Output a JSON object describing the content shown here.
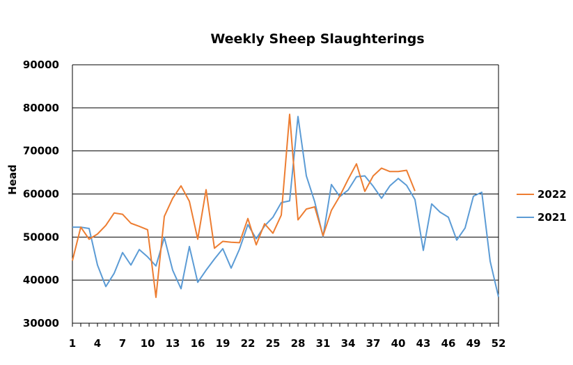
{
  "chart_data": {
    "type": "line",
    "title": "Weekly Sheep Slaughterings",
    "xlabel": "",
    "ylabel": "Head",
    "ylim": [
      30000,
      90000
    ],
    "yticks": [
      30000,
      40000,
      50000,
      60000,
      70000,
      80000,
      90000
    ],
    "xlim": [
      1,
      52
    ],
    "xticks": [
      1,
      4,
      7,
      10,
      13,
      16,
      19,
      22,
      25,
      28,
      31,
      34,
      37,
      40,
      43,
      46,
      49,
      52
    ],
    "grid": "horizontal",
    "legend_position": "right",
    "series": [
      {
        "name": "2022",
        "color": "#ED7D31",
        "x": [
          1,
          2,
          3,
          4,
          5,
          6,
          7,
          8,
          9,
          10,
          11,
          12,
          13,
          14,
          15,
          16,
          17,
          18,
          19,
          20,
          21,
          22,
          23,
          24,
          25,
          26,
          27,
          28,
          29,
          30,
          31,
          32,
          33,
          34,
          35,
          36,
          37,
          38,
          39,
          40,
          41,
          42
        ],
        "values": [
          44500,
          52300,
          49500,
          50700,
          52700,
          55600,
          55300,
          53200,
          52500,
          51700,
          36000,
          54800,
          59000,
          61900,
          58300,
          49500,
          61000,
          47400,
          49000,
          48800,
          48700,
          54300,
          48200,
          53100,
          50900,
          55100,
          78500,
          54000,
          56500,
          57000,
          50300,
          56200,
          59500,
          63400,
          67000,
          60600,
          64200,
          66000,
          65200,
          65200,
          65500,
          60700
        ]
      },
      {
        "name": "2021",
        "color": "#5B9BD5",
        "x": [
          1,
          2,
          3,
          4,
          5,
          6,
          7,
          8,
          9,
          10,
          11,
          12,
          13,
          14,
          15,
          16,
          17,
          18,
          19,
          20,
          21,
          22,
          23,
          24,
          25,
          26,
          27,
          28,
          29,
          30,
          31,
          32,
          33,
          34,
          35,
          36,
          37,
          38,
          39,
          40,
          41,
          42,
          43,
          44,
          45,
          46,
          47,
          48,
          49,
          50,
          51,
          52
        ],
        "values": [
          52300,
          52300,
          52000,
          43500,
          38500,
          41600,
          46400,
          43500,
          47100,
          45400,
          43300,
          49900,
          42300,
          38000,
          47800,
          39500,
          42300,
          44900,
          47300,
          42800,
          47200,
          52900,
          49600,
          52600,
          54600,
          58000,
          58400,
          78000,
          64200,
          58200,
          50100,
          62200,
          59400,
          60900,
          64000,
          64200,
          61800,
          59000,
          61900,
          63600,
          62000,
          58700,
          46900,
          57700,
          55800,
          54600,
          49300,
          52100,
          59500,
          60400,
          44400,
          36100
        ]
      }
    ]
  }
}
